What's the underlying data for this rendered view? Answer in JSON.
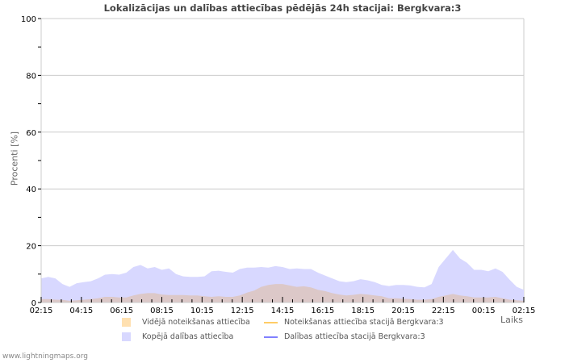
{
  "chart_data": {
    "type": "area",
    "title": "Lokalizācijas un dalības attiecības pēdējās 24h stacijai: Bergkvara:3",
    "xlabel": "Laiks",
    "ylabel": "Procenti   [%]",
    "ylim": [
      0,
      100
    ],
    "yticks": [
      0,
      20,
      40,
      60,
      80,
      100
    ],
    "xticks": [
      "02:15",
      "04:15",
      "06:15",
      "08:15",
      "10:15",
      "12:15",
      "14:15",
      "16:15",
      "18:15",
      "20:15",
      "22:15",
      "00:15",
      "02:15"
    ],
    "grid": true,
    "legend_position": "bottom",
    "x_interval_minutes": 30,
    "series": [
      {
        "name": "Kopējā dalības attiecība",
        "type": "area",
        "color": "#d8d8ff",
        "values": [
          8.5,
          9,
          8.5,
          6.5,
          5.5,
          6.8,
          7.2,
          7.5,
          8.5,
          9.8,
          10,
          9.8,
          10.5,
          12.5,
          13.2,
          12,
          12.5,
          11.5,
          12,
          10,
          9.2,
          9,
          9,
          9.2,
          11,
          11.2,
          10.8,
          10.5,
          11.8,
          12.3,
          12.3,
          12.5,
          12.3,
          12.8,
          12.5,
          11.8,
          12,
          11.8,
          11.8,
          10.5,
          9.5,
          8.5,
          7.5,
          7.2,
          7.5,
          8.2,
          7.8,
          7.2,
          6.2,
          5.8,
          6.2,
          6.2,
          6,
          5.5,
          5.3,
          6.5,
          12.5,
          15.5,
          18.5,
          15.5,
          14,
          11.5,
          11.5,
          11,
          12,
          10.8,
          8,
          5.5,
          4.5
        ]
      },
      {
        "name": "Vidējā noteikšanas attiecība",
        "type": "area",
        "color": "#ffe0b0",
        "values": [
          1.2,
          1.2,
          1.0,
          0.9,
          0.6,
          0.8,
          1.0,
          1.2,
          1.5,
          2.0,
          2.0,
          1.8,
          1.8,
          2.5,
          3.0,
          3.3,
          3.3,
          2.8,
          2.6,
          2.6,
          2.6,
          2.5,
          2.5,
          2.2,
          2.0,
          2.2,
          2.0,
          2.0,
          2.5,
          3.5,
          4.2,
          5.5,
          6.2,
          6.5,
          6.5,
          6,
          5.5,
          5.7,
          5.3,
          4.5,
          4.0,
          3.3,
          2.8,
          2.5,
          2.7,
          3.0,
          2.8,
          2.5,
          2.2,
          1.5,
          1.5,
          1.3,
          1.2,
          1.0,
          1.0,
          1.2,
          2.0,
          2.5,
          3.0,
          2.5,
          2.2,
          1.8,
          1.8,
          1.8,
          2.0,
          1.5,
          1.0,
          0.8,
          0.6
        ]
      },
      {
        "name": "Noteikšanas attiecība stacijā Bergkvara:3",
        "type": "line",
        "color": "#ffcc66",
        "values": []
      },
      {
        "name": "Dalības attiecība stacijā Bergkvara:3",
        "type": "line",
        "color": "#8080ff",
        "values": []
      }
    ]
  },
  "legend": {
    "items": [
      {
        "label": "Vidējā noteikšanas attiecība",
        "color": "#ffe0b0",
        "kind": "box"
      },
      {
        "label": "Noteikšanas attiecība stacijā Bergkvara:3",
        "color": "#ffcc66",
        "kind": "line"
      },
      {
        "label": "Kopējā dalības attiecība",
        "color": "#d8d8ff",
        "kind": "box"
      },
      {
        "label": "Dalības attiecība stacijā Bergkvara:3",
        "color": "#8080ff",
        "kind": "line"
      }
    ]
  },
  "footer": "www.lightningmaps.org",
  "colors": {
    "overlap": "#dcc8c8",
    "grid": "#cccccc",
    "axis_text": "#000000"
  }
}
